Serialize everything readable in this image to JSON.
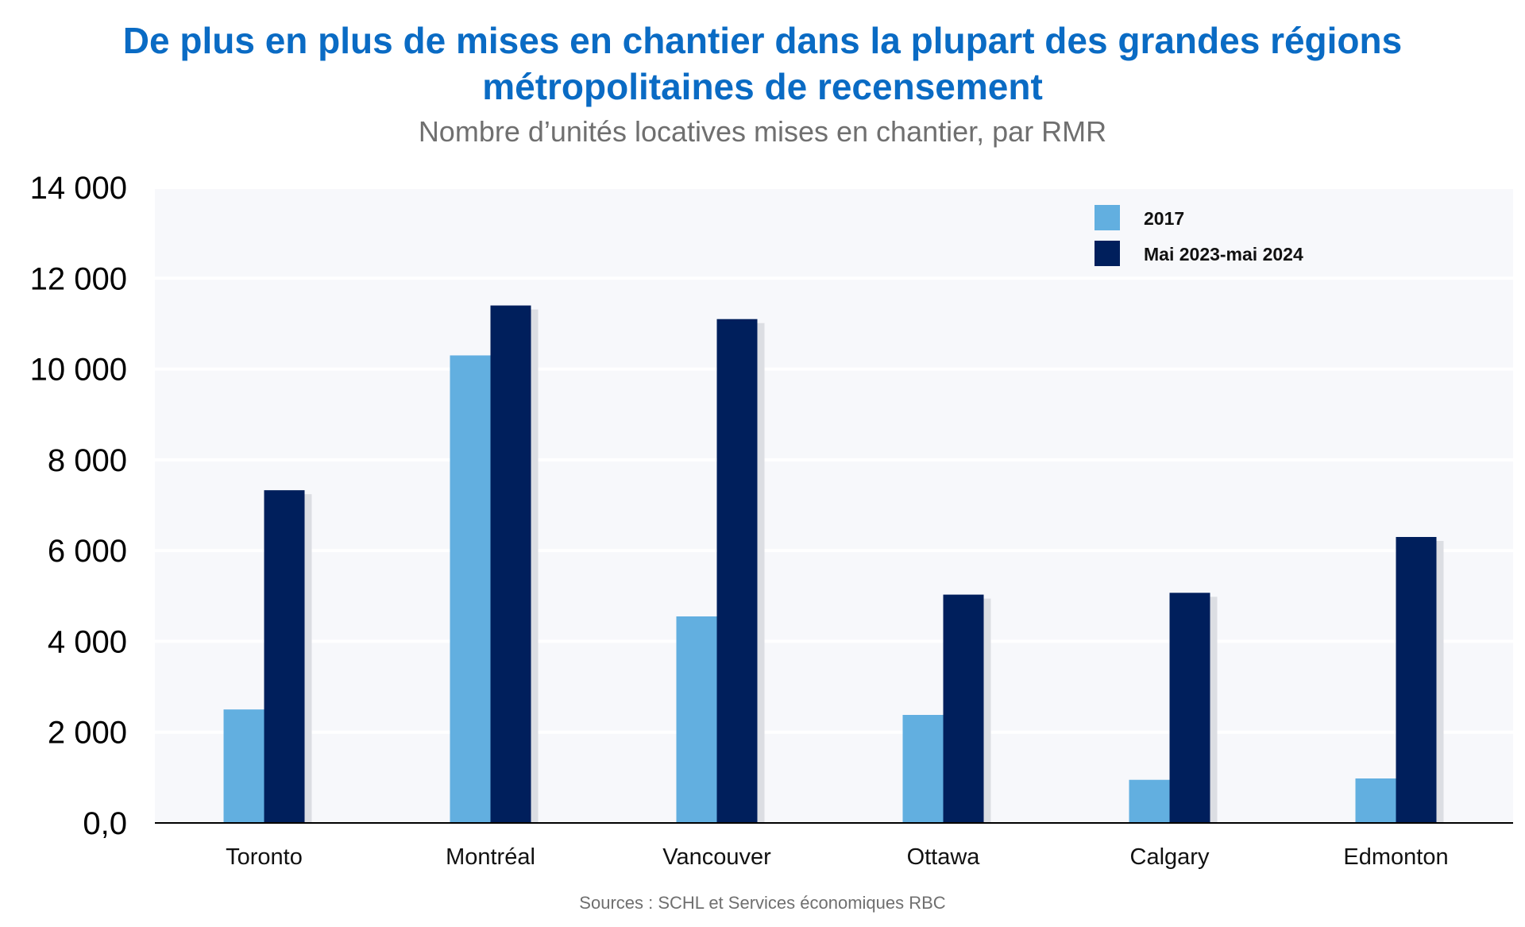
{
  "chart_data": {
    "type": "bar",
    "title": "De plus en plus de mises en chantier dans la plupart des grandes régions métropolitaines de recensement",
    "subtitle": "Nombre d’unités locatives mises en chantier, par RMR",
    "categories": [
      "Toronto",
      "Montréal",
      "Vancouver",
      "Ottawa",
      "Calgary",
      "Edmonton"
    ],
    "series": [
      {
        "name": "2017",
        "color": "#62afe0",
        "values": [
          2500,
          10300,
          4550,
          2380,
          950,
          980
        ]
      },
      {
        "name": "Mai 2023-mai 2024",
        "color": "#001f5c",
        "values": [
          7330,
          11400,
          11100,
          5030,
          5070,
          6300
        ]
      }
    ],
    "ylim": [
      0,
      14000
    ],
    "yticks": [
      0,
      2000,
      4000,
      6000,
      8000,
      10000,
      12000,
      14000
    ],
    "ytick_labels": [
      "0,0",
      "2 000",
      "4 000",
      "6 000",
      "8 000",
      "10 000",
      "12 000",
      "14 000"
    ],
    "xlabel": "",
    "ylabel": "",
    "grid": true,
    "legend_position": "top-right",
    "plot_background": "#f7f8fb",
    "source": "Sources : SCHL et Services économiques RBC"
  }
}
